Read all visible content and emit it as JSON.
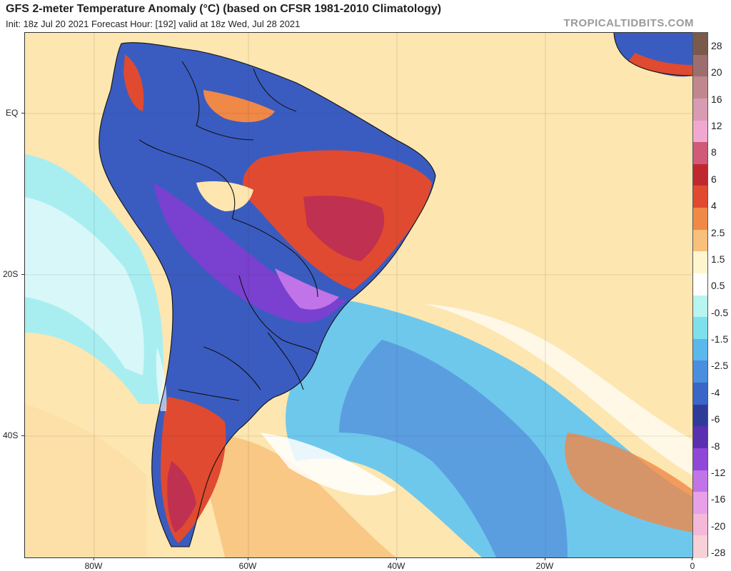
{
  "header": {
    "title": "GFS 2-meter Temperature Anomaly (°C) (based on CFSR 1981-2010 Climatology)",
    "subtitle": "Init: 18z Jul 20 2021   Forecast Hour: [192]   valid at 18z Wed, Jul 28 2021",
    "brand": "TROPICALTIDBITS.COM"
  },
  "axes": {
    "lat_labels": [
      "EQ",
      "20S",
      "40S"
    ],
    "lon_labels": [
      "80W",
      "60W",
      "40W",
      "20W",
      "0"
    ]
  },
  "colorbar": {
    "labels": [
      "28",
      "20",
      "16",
      "12",
      "8",
      "6",
      "4",
      "2.5",
      "1.5",
      "0.5",
      "-0.5",
      "-1.5",
      "-2.5",
      "-4",
      "-6",
      "-8",
      "-12",
      "-16",
      "-20",
      "-28"
    ],
    "colors": [
      "#7a5a4a",
      "#9c6e6e",
      "#c0888e",
      "#d99ab4",
      "#f0a8d0",
      "#d05a78",
      "#c02830",
      "#e04a30",
      "#f08848",
      "#f8c07a",
      "#fff6d0",
      "#ffffff",
      "#b8f4f0",
      "#7ee0ec",
      "#5ab8ec",
      "#4a8ee0",
      "#3a66c8",
      "#2e3c98",
      "#5a30b0",
      "#9048d8",
      "#c074e8",
      "#e8a0e8",
      "#f4b8d8",
      "#f8d0d8"
    ]
  },
  "map_colors": {
    "ocean_warm": "#fde6b0",
    "ocean_neutral": "#ffffff",
    "ocean_cool": "#a8eef0",
    "ocean_cold": "#6ec8ec",
    "land_cold": "#3a5cc0",
    "land_very_cold": "#7a40d0",
    "land_warm": "#e04a30",
    "land_hot": "#c03050",
    "border": "#111111"
  }
}
